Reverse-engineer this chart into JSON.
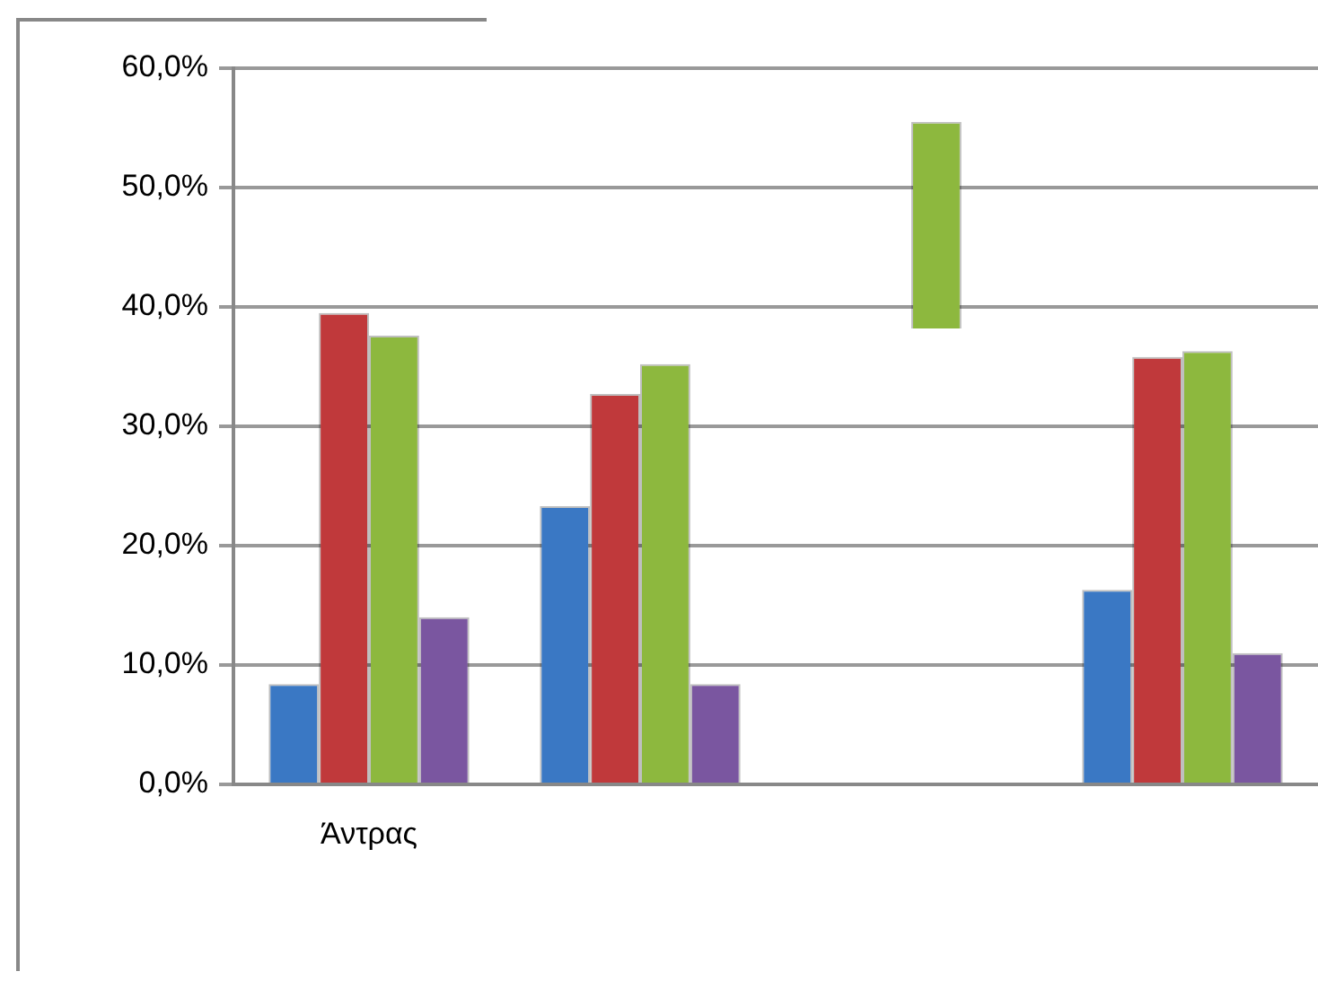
{
  "chart_data": {
    "type": "bar",
    "categories": [
      "Άντρας",
      null,
      null,
      null
    ],
    "series": [
      {
        "color": "#3a78c4",
        "values": [
          8.4,
          23.3,
          null,
          16.3
        ]
      },
      {
        "color": "#c0393b",
        "values": [
          39.5,
          32.7,
          null,
          35.8
        ]
      },
      {
        "color": "#8db83e",
        "values": [
          37.6,
          35.2,
          17.3,
          36.3
        ],
        "base": [
          0,
          0,
          38.2,
          0
        ]
      },
      {
        "color": "#7a56a0",
        "values": [
          14.0,
          8.4,
          null,
          11.0
        ]
      }
    ],
    "ylim": [
      0,
      60
    ],
    "yticks": [
      {
        "value": 0,
        "label": "0,0%"
      },
      {
        "value": 10,
        "label": "10,0%"
      },
      {
        "value": 20,
        "label": "20,0%"
      },
      {
        "value": 30,
        "label": "30,0%"
      },
      {
        "value": 40,
        "label": "40,0%"
      },
      {
        "value": 50,
        "label": "50,0%"
      },
      {
        "value": 60,
        "label": "60,0%"
      }
    ],
    "grid": "y",
    "legend": false
  }
}
